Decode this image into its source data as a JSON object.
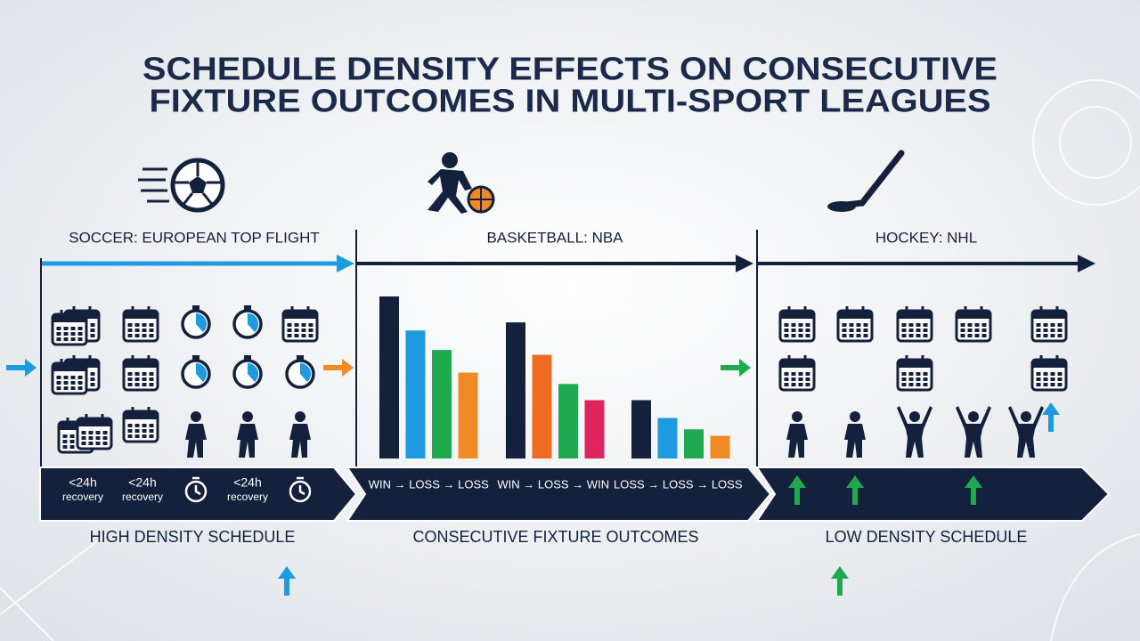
{
  "title": {
    "lines": [
      "SCHEDULE DENSITY EFFECTS ON CONSECUTIVE",
      "FIXTURE OUTCOMES IN MULTI-SPORT LEAGUES"
    ]
  },
  "sections": [
    {
      "label": "SOCCER: EUROPEAN TOP FLIGHT",
      "footer": "HIGH DENSITY SCHEDULE",
      "band_items": [
        {
          "top": "<24h",
          "bottom": "recovery"
        },
        {
          "top": "<24h",
          "bottom": "recovery"
        },
        {
          "top": "<24h",
          "bottom": "recovery"
        }
      ]
    },
    {
      "label": "BASKETBALL: NBA",
      "footer": "CONSECUTIVE FIXTURE OUTCOMES",
      "outcomes": [
        {
          "label": "WIN → LOSS → LOSS",
          "bars": [
            {
              "value": 100,
              "color": "#14213d"
            },
            {
              "value": 79,
              "color": "#1e9be0"
            },
            {
              "value": 67,
              "color": "#1faa4f"
            },
            {
              "value": 53,
              "color": "#f08a24"
            }
          ]
        },
        {
          "label": "WIN → LOSS → WIN",
          "bars": [
            {
              "value": 84,
              "color": "#14213d"
            },
            {
              "value": 64,
              "color": "#ef6a22"
            },
            {
              "value": 46,
              "color": "#1faa4f"
            },
            {
              "value": 36,
              "color": "#e0245e"
            }
          ]
        },
        {
          "label": "LOSS → LOSS → LOSS",
          "bars": [
            {
              "value": 36,
              "color": "#14213d"
            },
            {
              "value": 25,
              "color": "#1e9be0"
            },
            {
              "value": 18,
              "color": "#1faa4f"
            },
            {
              "value": 14,
              "color": "#f08a24"
            }
          ]
        }
      ]
    },
    {
      "label": "HOCKEY: NHL",
      "footer": "LOW DENSITY SCHEDULE"
    }
  ]
}
